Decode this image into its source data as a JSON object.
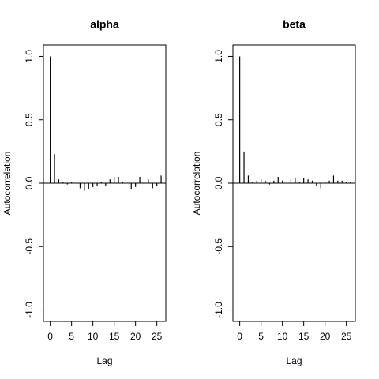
{
  "chart_data": [
    {
      "type": "bar",
      "title": "alpha",
      "xlabel": "Lag",
      "ylabel": "Autocorrelation",
      "color": "#000000",
      "x": [
        0,
        1,
        2,
        3,
        4,
        5,
        6,
        7,
        8,
        9,
        10,
        11,
        12,
        13,
        14,
        15,
        16,
        17,
        18,
        19,
        20,
        21,
        22,
        23,
        24,
        25,
        26
      ],
      "values": [
        1.0,
        0.23,
        0.03,
        0.01,
        -0.01,
        0.01,
        0.0,
        -0.04,
        -0.06,
        -0.05,
        -0.03,
        -0.02,
        0.01,
        -0.02,
        0.03,
        0.05,
        0.05,
        0.01,
        0.0,
        -0.05,
        -0.03,
        0.05,
        0.01,
        0.03,
        -0.04,
        -0.02,
        0.06
      ],
      "xlim": [
        -1.6,
        27.1
      ],
      "ylim": [
        -1.09,
        1.09
      ],
      "xticks": [
        0,
        5,
        10,
        15,
        20,
        25
      ],
      "yticks": [
        {
          "value": -1,
          "label": "-1.0"
        },
        {
          "value": -0.5,
          "label": "-0.5"
        },
        {
          "value": 0,
          "label": "0.0"
        },
        {
          "value": 0.5,
          "label": "0.5"
        },
        {
          "value": 1,
          "label": "1.0"
        }
      ]
    },
    {
      "type": "bar",
      "title": "beta",
      "xlabel": "Lag",
      "ylabel": "Autocorrelation",
      "color": "#000000",
      "x": [
        0,
        1,
        2,
        3,
        4,
        5,
        6,
        7,
        8,
        9,
        10,
        11,
        12,
        13,
        14,
        15,
        16,
        17,
        18,
        19,
        20,
        21,
        22,
        23,
        24,
        25,
        26
      ],
      "values": [
        1.0,
        0.25,
        0.06,
        0.01,
        0.02,
        0.03,
        0.02,
        -0.01,
        0.02,
        0.05,
        0.02,
        0.0,
        0.03,
        0.04,
        0.01,
        0.04,
        0.03,
        0.02,
        -0.02,
        -0.04,
        0.01,
        0.02,
        0.06,
        0.02,
        0.02,
        0.01,
        0.01
      ],
      "xlim": [
        -1.6,
        27.1
      ],
      "ylim": [
        -1.09,
        1.09
      ],
      "xticks": [
        0,
        5,
        10,
        15,
        20,
        25
      ],
      "yticks": [
        {
          "value": -1,
          "label": "-1.0"
        },
        {
          "value": -0.5,
          "label": "-0.5"
        },
        {
          "value": 0,
          "label": "0.0"
        },
        {
          "value": 0.5,
          "label": "0.5"
        },
        {
          "value": 1,
          "label": "1.0"
        }
      ]
    }
  ]
}
